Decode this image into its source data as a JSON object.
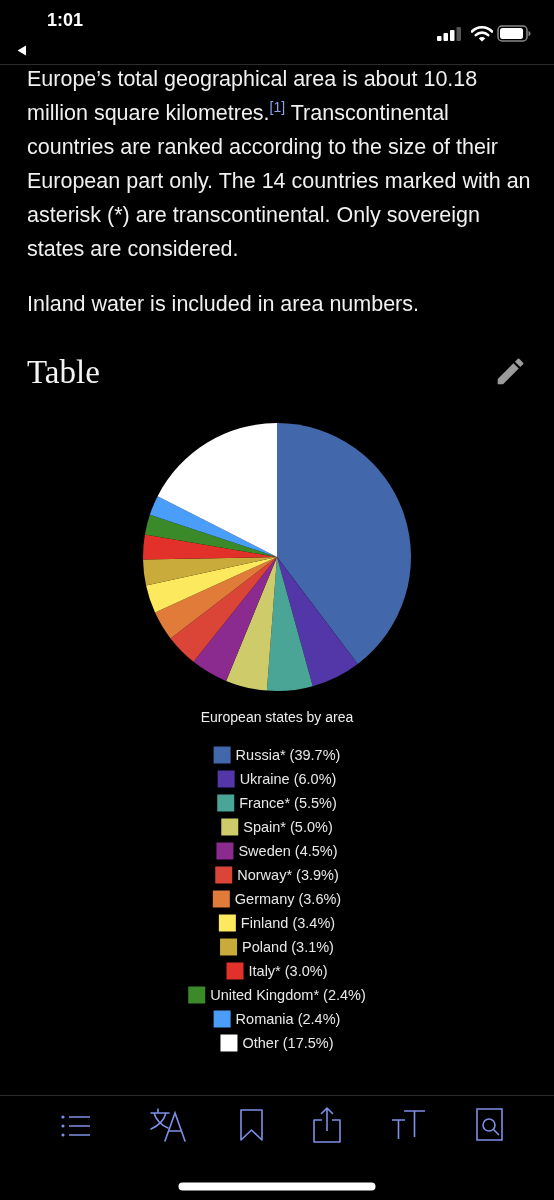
{
  "chart_data": {
    "type": "pie",
    "title": "Table",
    "legend_title": "European states by area",
    "annotations": [
      "1:01",
      "Europe’s total geographical area is about 10.18 million square kilometres.$^{[1]}$ Transcontinental countries are ranked according to the size of their European part only. The 14 countries marked with an asterisk (*) are transcontinental. Only sovereign states are considered.",
      "Inland water is included in area numbers."
    ],
    "categories": [
      "Russia*",
      "Ukraine",
      "France*",
      "Spain*",
      "Sweden",
      "Norway*",
      "Germany",
      "Finland",
      "Poland",
      "Italy*",
      "United Kingdom*",
      "Romania",
      "Other"
    ],
    "values": [
      39.7,
      6.0,
      5.5,
      5.0,
      4.5,
      3.9,
      3.6,
      3.4,
      3.1,
      3.0,
      2.4,
      2.4,
      17.5
    ],
    "value_labels": [
      "(39.7%)",
      "(6.0%)",
      "(5.5%)",
      "(5.0%)",
      "(4.5%)",
      "(3.9%)",
      "(3.6%)",
      "(3.4%)",
      "(3.1%)",
      "(3.0%)",
      "(2.4%)",
      "(2.4%)",
      "(17.5%)"
    ],
    "colors": [
      "#4267ab",
      "#5336a8",
      "#4aa597",
      "#cdcb6a",
      "#8c2b8f",
      "#db4537",
      "#e07b39",
      "#fde95e",
      "#c9ab3c",
      "#e2312a",
      "#3b8a2a",
      "#4a9df8",
      "#ffffff"
    ],
    "legend": "bottom"
  }
}
